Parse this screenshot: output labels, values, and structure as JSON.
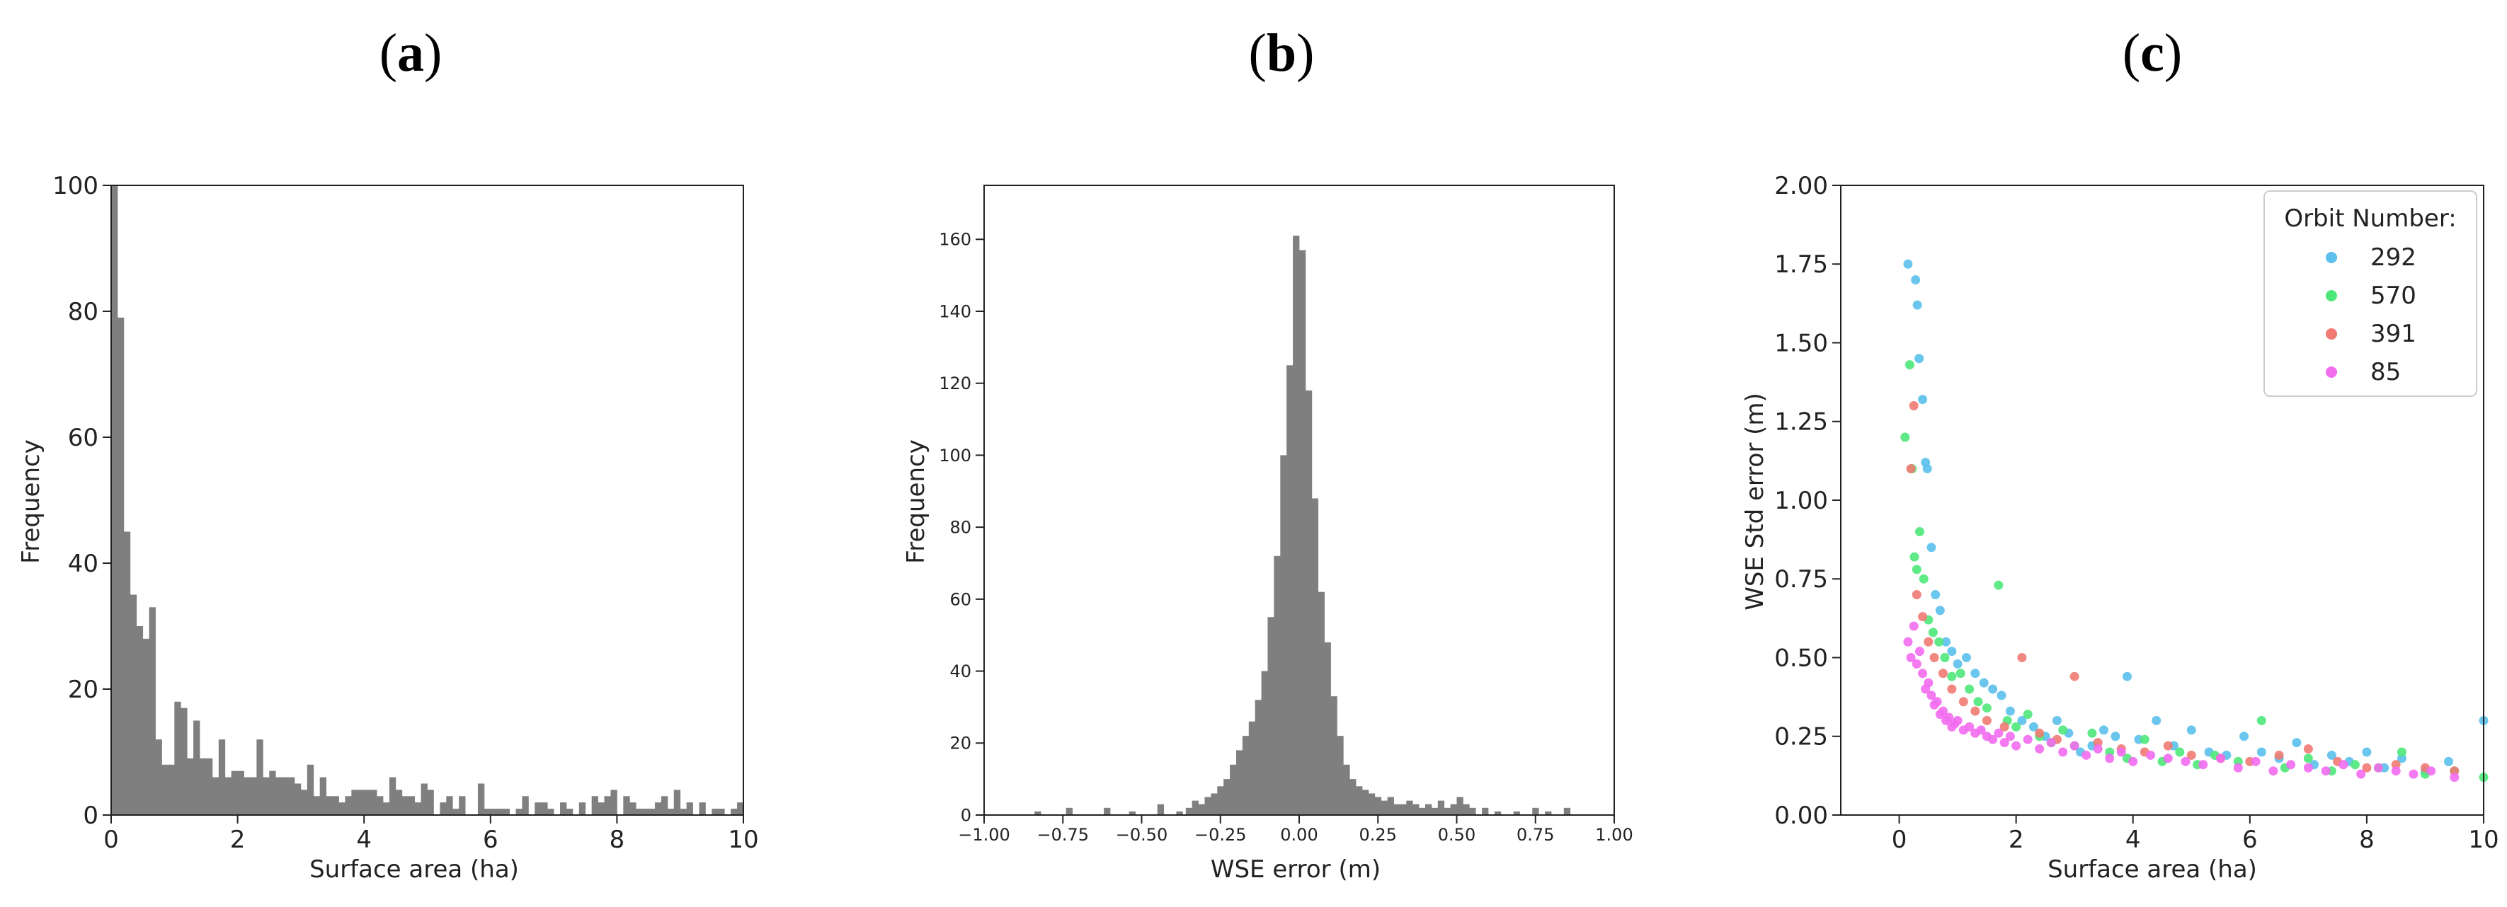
{
  "chart_data": [
    {
      "panel": "(a)",
      "type": "bar",
      "xlabel": "Surface area (ha)",
      "ylabel": "Frequency",
      "xlim": [
        0,
        10
      ],
      "ylim": [
        0,
        100
      ],
      "x_ticks": [
        0,
        2,
        4,
        6,
        8,
        10
      ],
      "y_ticks": [
        0,
        20,
        40,
        60,
        80,
        100
      ],
      "bar_color": "#7f7f7f",
      "bin_width": 0.1,
      "values": [
        100,
        79,
        45,
        35,
        30,
        28,
        33,
        12,
        8,
        8,
        18,
        17,
        9,
        15,
        9,
        9,
        6,
        12,
        6,
        7,
        7,
        6,
        6,
        12,
        6,
        7,
        6,
        6,
        6,
        5,
        4,
        8,
        3,
        6,
        3,
        3,
        2,
        3,
        4,
        4,
        4,
        4,
        3,
        2,
        6,
        4,
        3,
        3,
        2,
        5,
        4,
        0,
        2,
        3,
        1,
        3,
        0,
        0,
        5,
        1,
        1,
        1,
        1,
        0,
        1,
        3,
        0,
        2,
        2,
        1,
        0,
        2,
        1,
        0,
        2,
        0,
        3,
        2,
        3,
        4,
        0,
        3,
        2,
        1,
        1,
        1,
        2,
        3,
        1,
        4,
        1,
        2,
        0,
        2,
        0,
        1,
        1,
        0,
        1,
        2
      ]
    },
    {
      "panel": "(b)",
      "type": "bar",
      "xlabel": "WSE error (m)",
      "ylabel": "Frequency",
      "xlim": [
        -1.0,
        1.0
      ],
      "ylim": [
        0,
        175
      ],
      "x_ticks": [
        "−1.00",
        "−0.75",
        "−0.50",
        "−0.25",
        "0.00",
        "0.25",
        "0.50",
        "0.75",
        "1.00"
      ],
      "y_ticks": [
        0,
        20,
        40,
        60,
        80,
        100,
        120,
        140,
        160
      ],
      "bar_color": "#7f7f7f",
      "x": [
        -0.83,
        -0.73,
        -0.61,
        -0.53,
        -0.44,
        -0.38,
        -0.35,
        -0.33,
        -0.31,
        -0.29,
        -0.27,
        -0.25,
        -0.23,
        -0.21,
        -0.19,
        -0.17,
        -0.15,
        -0.13,
        -0.11,
        -0.09,
        -0.07,
        -0.05,
        -0.03,
        -0.01,
        0.01,
        0.03,
        0.05,
        0.07,
        0.09,
        0.11,
        0.13,
        0.15,
        0.17,
        0.19,
        0.21,
        0.23,
        0.25,
        0.27,
        0.29,
        0.31,
        0.33,
        0.35,
        0.37,
        0.39,
        0.41,
        0.43,
        0.45,
        0.47,
        0.49,
        0.51,
        0.53,
        0.55,
        0.59,
        0.63,
        0.69,
        0.75,
        0.79,
        0.85
      ],
      "values": [
        1,
        2,
        2,
        1,
        3,
        1,
        2,
        4,
        3,
        5,
        6,
        8,
        10,
        14,
        18,
        22,
        26,
        32,
        40,
        55,
        72,
        100,
        125,
        161,
        157,
        118,
        88,
        62,
        48,
        33,
        22,
        14,
        10,
        8,
        7,
        6,
        5,
        4,
        5,
        3,
        3,
        4,
        3,
        2,
        3,
        2,
        4,
        2,
        3,
        5,
        3,
        2,
        2,
        1,
        1,
        2,
        1,
        2
      ]
    },
    {
      "panel": "(c)",
      "type": "scatter",
      "xlabel": "Surface area (ha)",
      "ylabel": "WSE Std error (m)",
      "xlim": [
        -1,
        10
      ],
      "ylim": [
        0,
        2.0
      ],
      "x_ticks": [
        0,
        2,
        4,
        6,
        8,
        10
      ],
      "y_ticks": [
        "0.00",
        "0.25",
        "0.50",
        "0.75",
        "1.00",
        "1.25",
        "1.50",
        "1.75",
        "2.00"
      ],
      "legend_title": "Orbit Number:",
      "legend_position": "top-right",
      "series": [
        {
          "name": "292",
          "color": "#5bc0eb",
          "x": [
            0.15,
            0.28,
            0.31,
            0.34,
            0.4,
            0.45,
            0.48,
            0.55,
            0.62,
            0.7,
            0.8,
            0.9,
            1.0,
            1.15,
            1.3,
            1.45,
            1.6,
            1.75,
            1.9,
            2.1,
            2.3,
            2.5,
            2.7,
            2.9,
            3.1,
            3.3,
            3.5,
            3.7,
            3.9,
            4.1,
            4.4,
            4.7,
            5.0,
            5.3,
            5.6,
            5.9,
            6.2,
            6.5,
            6.8,
            7.1,
            7.4,
            7.7,
            8.0,
            8.3,
            8.6,
            9.0,
            9.4,
            10.0
          ],
          "y": [
            1.75,
            1.7,
            1.62,
            1.45,
            1.32,
            1.12,
            1.1,
            0.85,
            0.7,
            0.65,
            0.55,
            0.52,
            0.48,
            0.5,
            0.45,
            0.42,
            0.4,
            0.38,
            0.33,
            0.3,
            0.28,
            0.25,
            0.3,
            0.26,
            0.2,
            0.22,
            0.27,
            0.25,
            0.44,
            0.24,
            0.3,
            0.22,
            0.27,
            0.2,
            0.19,
            0.25,
            0.2,
            0.18,
            0.23,
            0.16,
            0.19,
            0.17,
            0.2,
            0.15,
            0.18,
            0.14,
            0.17,
            0.3
          ]
        },
        {
          "name": "570",
          "color": "#4ee87a",
          "x": [
            0.1,
            0.18,
            0.22,
            0.26,
            0.3,
            0.35,
            0.42,
            0.5,
            0.58,
            0.68,
            0.78,
            0.9,
            1.05,
            1.2,
            1.35,
            1.5,
            1.7,
            1.85,
            2.0,
            2.2,
            2.4,
            2.6,
            2.8,
            3.0,
            3.3,
            3.6,
            3.9,
            4.2,
            4.5,
            4.8,
            5.1,
            5.4,
            5.8,
            6.2,
            6.6,
            7.0,
            7.4,
            7.8,
            8.2,
            8.6,
            9.0,
            9.5,
            10.0
          ],
          "y": [
            1.2,
            1.43,
            1.1,
            0.82,
            0.78,
            0.9,
            0.75,
            0.62,
            0.58,
            0.55,
            0.5,
            0.44,
            0.45,
            0.4,
            0.36,
            0.34,
            0.73,
            0.3,
            0.28,
            0.32,
            0.25,
            0.23,
            0.27,
            0.22,
            0.26,
            0.2,
            0.18,
            0.24,
            0.17,
            0.2,
            0.16,
            0.19,
            0.17,
            0.3,
            0.15,
            0.18,
            0.14,
            0.16,
            0.15,
            0.2,
            0.13,
            0.14,
            0.12
          ]
        },
        {
          "name": "391",
          "color": "#f07a72",
          "x": [
            0.2,
            0.25,
            0.3,
            0.4,
            0.5,
            0.6,
            0.75,
            0.9,
            1.1,
            1.3,
            1.5,
            1.8,
            2.1,
            2.4,
            2.7,
            3.0,
            3.4,
            3.8,
            4.2,
            4.6,
            5.0,
            5.5,
            6.0,
            6.5,
            7.0,
            7.5,
            8.0,
            8.5,
            9.0,
            9.5
          ],
          "y": [
            1.1,
            1.3,
            0.7,
            0.63,
            0.55,
            0.5,
            0.45,
            0.4,
            0.36,
            0.33,
            0.3,
            0.28,
            0.5,
            0.26,
            0.24,
            0.44,
            0.23,
            0.21,
            0.2,
            0.22,
            0.19,
            0.18,
            0.17,
            0.19,
            0.21,
            0.17,
            0.15,
            0.16,
            0.15,
            0.14
          ]
        },
        {
          "name": "85",
          "color": "#f26cf0",
          "x": [
            0.15,
            0.2,
            0.25,
            0.3,
            0.35,
            0.4,
            0.45,
            0.5,
            0.55,
            0.6,
            0.65,
            0.7,
            0.75,
            0.8,
            0.85,
            0.9,
            0.95,
            1.0,
            1.1,
            1.2,
            1.3,
            1.4,
            1.5,
            1.6,
            1.7,
            1.8,
            1.9,
            2.0,
            2.2,
            2.4,
            2.6,
            2.8,
            3.0,
            3.2,
            3.4,
            3.6,
            3.8,
            4.0,
            4.3,
            4.6,
            4.9,
            5.2,
            5.5,
            5.8,
            6.1,
            6.4,
            6.7,
            7.0,
            7.3,
            7.6,
            7.9,
            8.2,
            8.5,
            8.8,
            9.1,
            9.5
          ],
          "y": [
            0.55,
            0.5,
            0.6,
            0.48,
            0.52,
            0.45,
            0.4,
            0.42,
            0.38,
            0.35,
            0.36,
            0.32,
            0.33,
            0.3,
            0.31,
            0.28,
            0.29,
            0.3,
            0.27,
            0.28,
            0.26,
            0.27,
            0.25,
            0.24,
            0.26,
            0.23,
            0.25,
            0.22,
            0.24,
            0.21,
            0.23,
            0.2,
            0.22,
            0.19,
            0.21,
            0.18,
            0.2,
            0.17,
            0.19,
            0.18,
            0.17,
            0.16,
            0.18,
            0.15,
            0.17,
            0.14,
            0.16,
            0.15,
            0.14,
            0.16,
            0.13,
            0.15,
            0.14,
            0.13,
            0.14,
            0.12
          ]
        }
      ]
    }
  ]
}
